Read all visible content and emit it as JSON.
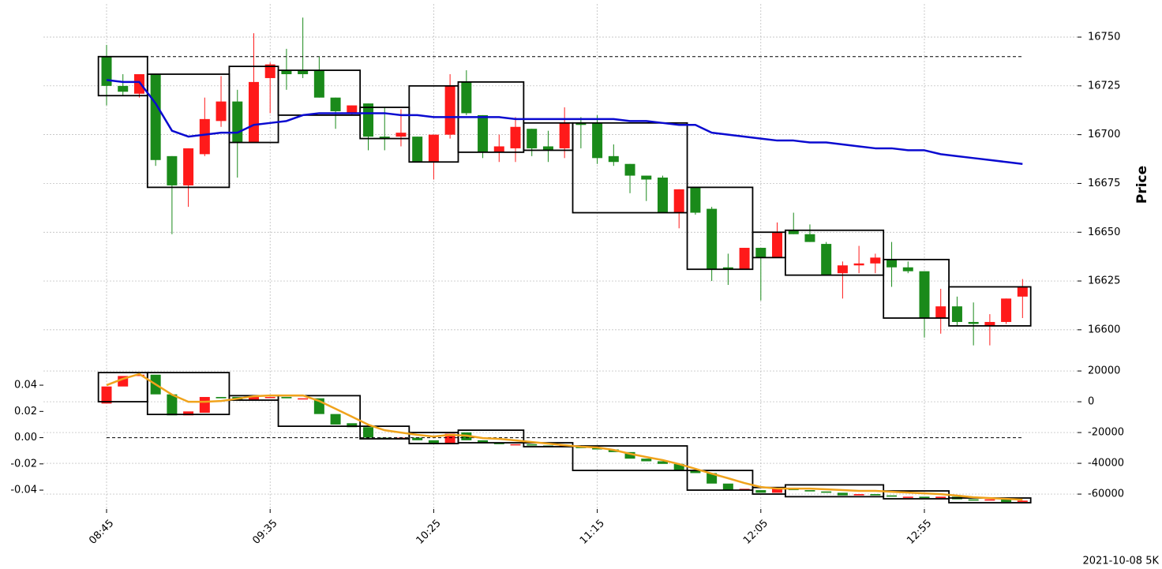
{
  "chart_data": [
    {
      "type": "candlestick",
      "ylabel": "Price",
      "ylim": [
        16587,
        16767
      ],
      "yticks": [
        16600,
        16625,
        16650,
        16675,
        16700,
        16725,
        16750
      ],
      "grid": true,
      "up_color": "#ff1a1a",
      "down_color": "#1a8a1a",
      "open": [
        16740,
        16725,
        16721,
        16731,
        16689,
        16674,
        16690,
        16707,
        16717,
        16696,
        16729,
        16733,
        16733,
        16733,
        16719,
        16711,
        16716,
        16699,
        16699,
        16699,
        16686,
        16700,
        16727,
        16710,
        16691,
        16693,
        16703,
        16694,
        16693,
        16706,
        16706,
        16689,
        16685,
        16679,
        16678,
        16660,
        16673,
        16662,
        16632,
        16631,
        16642,
        16637,
        16651,
        16649,
        16644,
        16629,
        16633,
        16634,
        16636,
        16632,
        16630,
        16606,
        16612,
        16604,
        16602,
        16604,
        16617
      ],
      "high": [
        16746,
        16731,
        16731,
        16731,
        16689,
        16693,
        16719,
        16730,
        16723,
        16752,
        16737,
        16744,
        16760,
        16740,
        16719,
        16715,
        16716,
        16714,
        16713,
        16699,
        16700,
        16731,
        16733,
        16710,
        16700,
        16709,
        16703,
        16702,
        16714,
        16709,
        16710,
        16695,
        16685,
        16679,
        16679,
        16672,
        16673,
        16663,
        16639,
        16642,
        16642,
        16655,
        16660,
        16654,
        16645,
        16635,
        16643,
        16639,
        16645,
        16635,
        16630,
        16621,
        16617,
        16614,
        16608,
        16616,
        16626
      ],
      "low": [
        16715,
        16720,
        16719,
        16684,
        16649,
        16663,
        16689,
        16704,
        16678,
        16696,
        16711,
        16723,
        16729,
        16719,
        16703,
        16710,
        16692,
        16692,
        16694,
        16686,
        16677,
        16698,
        16710,
        16688,
        16686,
        16686,
        16689,
        16686,
        16688,
        16693,
        16685,
        16684,
        16670,
        16666,
        16660,
        16652,
        16659,
        16625,
        16623,
        16631,
        16615,
        16637,
        16649,
        16645,
        16628,
        16616,
        16629,
        16629,
        16622,
        16629,
        16596,
        16598,
        16602,
        16592,
        16592,
        16603,
        16606
      ],
      "close": [
        16725,
        16722,
        16731,
        16687,
        16674,
        16693,
        16708,
        16717,
        16696,
        16727,
        16736,
        16731,
        16731,
        16719,
        16712,
        16715,
        16699,
        16698,
        16701,
        16686,
        16700,
        16725,
        16711,
        16691,
        16694,
        16704,
        16693,
        16692,
        16706,
        16705,
        16688,
        16686,
        16679,
        16677,
        16660,
        16672,
        16660,
        16631,
        16631,
        16642,
        16637,
        16650,
        16649,
        16645,
        16628,
        16633,
        16634,
        16637,
        16632,
        16630,
        16606,
        16612,
        16604,
        16603,
        16604,
        16616,
        16622
      ],
      "lines": [
        {
          "color": "#0a0ad0",
          "values": [
            16728,
            16727,
            16727,
            16716,
            16702,
            16699,
            16700,
            16701,
            16701,
            16705,
            16706,
            16707,
            16710,
            16711,
            16711,
            16711,
            16711,
            16711,
            16710,
            16710,
            16709,
            16709,
            16709,
            16709,
            16709,
            16708,
            16708,
            16708,
            16708,
            16708,
            16708,
            16708,
            16707,
            16707,
            16706,
            16705,
            16705,
            16701,
            16700,
            16699,
            16698,
            16697,
            16697,
            16696,
            16696,
            16695,
            16694,
            16693,
            16693,
            16692,
            16692,
            16690,
            16689,
            16688,
            16687,
            16686,
            16685
          ]
        }
      ],
      "hline": 16740,
      "boxes": [
        {
          "start": 0,
          "end": 2,
          "high": 16740,
          "low": 16720
        },
        {
          "start": 3,
          "end": 7,
          "high": 16731,
          "low": 16673
        },
        {
          "start": 8,
          "end": 10,
          "high": 16735,
          "low": 16696
        },
        {
          "start": 11,
          "end": 15,
          "high": 16733,
          "low": 16710
        },
        {
          "start": 16,
          "end": 18,
          "high": 16714,
          "low": 16698
        },
        {
          "start": 19,
          "end": 21,
          "high": 16725,
          "low": 16686
        },
        {
          "start": 22,
          "end": 25,
          "high": 16727,
          "low": 16691
        },
        {
          "start": 26,
          "end": 28,
          "high": 16706,
          "low": 16692
        },
        {
          "start": 29,
          "end": 35,
          "high": 16706,
          "low": 16660
        },
        {
          "start": 36,
          "end": 39,
          "high": 16673,
          "low": 16631
        },
        {
          "start": 40,
          "end": 41,
          "high": 16650,
          "low": 16637
        },
        {
          "start": 42,
          "end": 47,
          "high": 16651,
          "low": 16628
        },
        {
          "start": 48,
          "end": 51,
          "high": 16636,
          "low": 16606
        },
        {
          "start": 52,
          "end": 56,
          "high": 16622,
          "low": 16602
        }
      ]
    },
    {
      "type": "candlestick",
      "annotation": "2021-10-08 5K",
      "categories": [
        "08:45",
        null,
        null,
        null,
        null,
        null,
        null,
        null,
        null,
        null,
        "09:35",
        null,
        null,
        null,
        null,
        null,
        null,
        null,
        null,
        null,
        "10:25",
        null,
        null,
        null,
        null,
        null,
        null,
        null,
        null,
        null,
        "11:15",
        null,
        null,
        null,
        null,
        null,
        null,
        null,
        null,
        null,
        "12:05",
        null,
        null,
        null,
        null,
        null,
        null,
        null,
        null,
        null,
        "12:55",
        null,
        null,
        null,
        null,
        null,
        null
      ],
      "ylim": [
        -0.0544,
        0.0629
      ],
      "yticks": [
        0.04,
        0.02,
        {
          "value": 0,
          "label": "0.00"
        },
        -0.02,
        -0.04
      ],
      "y2lim": [
        -69700,
        30300
      ],
      "y2ticks": [
        20000,
        0,
        -20000,
        -40000,
        -60000
      ],
      "grid": true,
      "up_color": "#ff1a1a",
      "down_color": "#1a8a1a",
      "open": [
        0.026,
        0.039,
        0.047,
        0.048,
        0.033,
        0.017,
        0.019,
        0.031,
        0.031,
        0.029,
        0.031,
        0.031,
        0.03,
        0.03,
        0.018,
        0.011,
        0.008,
        0.0,
        -0.001,
        0.0,
        -0.002,
        -0.005,
        0.004,
        -0.002,
        -0.004,
        -0.005,
        -0.005,
        -0.006,
        -0.007,
        -0.006,
        -0.008,
        -0.009,
        -0.011,
        -0.016,
        -0.018,
        -0.02,
        -0.025,
        -0.027,
        -0.035,
        -0.04,
        -0.04,
        -0.042,
        -0.039,
        -0.04,
        -0.041,
        -0.042,
        -0.044,
        -0.043,
        -0.044,
        -0.045,
        -0.045,
        -0.046,
        -0.045,
        -0.047,
        -0.048,
        -0.047,
        -0.049
      ],
      "close": [
        0.039,
        0.047,
        0.048,
        0.033,
        0.017,
        0.02,
        0.031,
        0.03,
        0.029,
        0.031,
        0.031,
        0.03,
        0.03,
        0.018,
        0.01,
        0.008,
        0.0,
        -0.001,
        0.0,
        -0.002,
        -0.005,
        0.003,
        -0.002,
        -0.004,
        -0.005,
        -0.005,
        -0.006,
        -0.007,
        -0.006,
        -0.008,
        -0.009,
        -0.011,
        -0.016,
        -0.018,
        -0.02,
        -0.025,
        -0.027,
        -0.035,
        -0.04,
        -0.039,
        -0.042,
        -0.039,
        -0.04,
        -0.041,
        -0.042,
        -0.044,
        -0.043,
        -0.044,
        -0.045,
        -0.045,
        -0.046,
        -0.045,
        -0.047,
        -0.048,
        -0.047,
        -0.049,
        -0.048
      ],
      "lines": [
        {
          "color": "#f0a31c",
          "axis": "y2",
          "values": [
            10770,
            14900,
            18000,
            11300,
            4600,
            0,
            0,
            500,
            2000,
            3600,
            4100,
            4100,
            4100,
            500,
            -4600,
            -9700,
            -14900,
            -18500,
            -20000,
            -21500,
            -22600,
            -21500,
            -22000,
            -23600,
            -24100,
            -25100,
            -26200,
            -27200,
            -28200,
            -29200,
            -29700,
            -31300,
            -33800,
            -35900,
            -37900,
            -40500,
            -43600,
            -46700,
            -49700,
            -52800,
            -55400,
            -56400,
            -56400,
            -56400,
            -56900,
            -57400,
            -57900,
            -57900,
            -58500,
            -59000,
            -59500,
            -60000,
            -61000,
            -62100,
            -62600,
            -63100,
            -63600
          ]
        }
      ],
      "hline": 0,
      "boxes": [
        {
          "start": 0,
          "end": 2,
          "high": 0.0496,
          "low": 0.0274
        },
        {
          "start": 3,
          "end": 7,
          "high": 0.0496,
          "low": 0.0177
        },
        {
          "start": 8,
          "end": 10,
          "high": 0.032,
          "low": 0.0286
        },
        {
          "start": 11,
          "end": 15,
          "high": 0.032,
          "low": 0.0087
        },
        {
          "start": 16,
          "end": 18,
          "high": 0.0087,
          "low": -0.0009
        },
        {
          "start": 19,
          "end": 21,
          "high": 0.0039,
          "low": -0.0045
        },
        {
          "start": 22,
          "end": 25,
          "high": 0.0057,
          "low": -0.0039
        },
        {
          "start": 26,
          "end": 28,
          "high": -0.0039,
          "low": -0.0069
        },
        {
          "start": 29,
          "end": 35,
          "high": -0.0063,
          "low": -0.025
        },
        {
          "start": 36,
          "end": 39,
          "high": -0.025,
          "low": -0.04
        },
        {
          "start": 40,
          "end": 41,
          "high": -0.038,
          "low": -0.043
        },
        {
          "start": 42,
          "end": 47,
          "high": -0.036,
          "low": -0.045
        },
        {
          "start": 48,
          "end": 51,
          "high": -0.0406,
          "low": -0.0466
        },
        {
          "start": 52,
          "end": 56,
          "high": -0.046,
          "low": -0.0496
        }
      ]
    }
  ]
}
